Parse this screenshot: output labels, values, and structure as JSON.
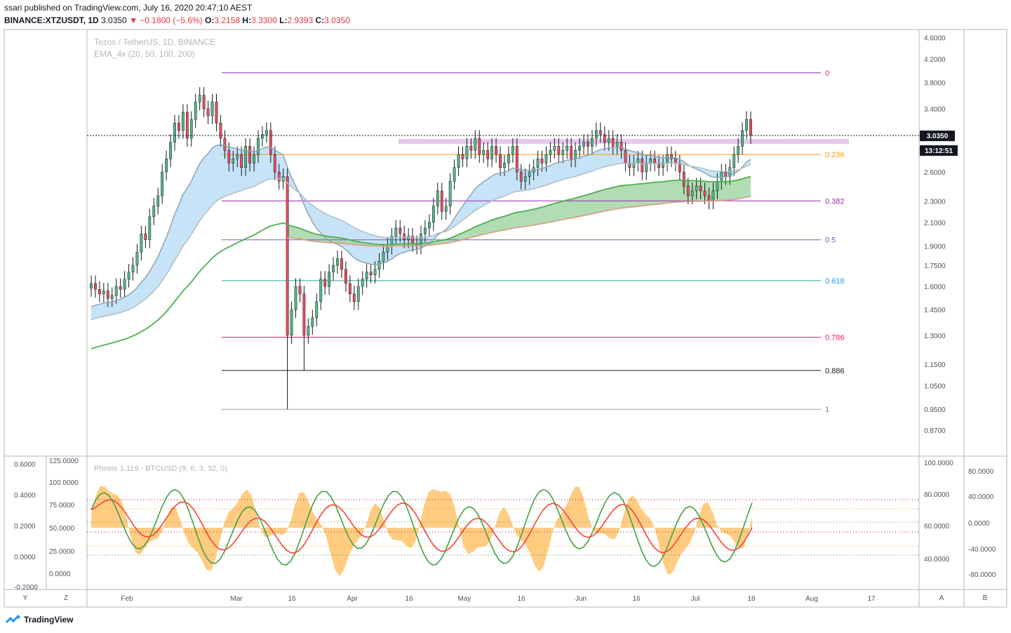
{
  "header": {
    "published": "ssari published on TradingView.com, July 16, 2020 20:47:10 AEST",
    "symbol": "BINANCE:XTZUSDT, 1D",
    "last": "3.0350",
    "change": "▼ −0.1800 (−5.6%)",
    "o_label": "O:",
    "o": "3.2158",
    "h_label": "H:",
    "h": "3.3300",
    "l_label": "L:",
    "l": "2.9393",
    "c_label": "C:",
    "c": "3.0350"
  },
  "main_pane": {
    "title": "Tezos / TetherUS, 1D, BINANCE",
    "indicator": "EMA_4x (20, 50, 100, 200)",
    "price_label": "3.0350",
    "countdown_label": "13:12:51"
  },
  "sub_pane": {
    "title": "Phoeix 1.119 - BTCUSD (9, 6, 3, 32, 0)"
  },
  "corner_buttons": {
    "y": "Y",
    "z": "Z",
    "a": "A",
    "b": "B"
  },
  "footer": {
    "brand": "TradingView"
  },
  "colors": {
    "up": "#53b987",
    "down": "#eb4d5c",
    "ema_band": "#b3d9f5",
    "ema_green": "#4caf50",
    "ema_tan": "#d4a38a",
    "green_fill": "#a5d6a7",
    "supply_zone": "#e1bee7",
    "osc_fill": "#ffb74d",
    "osc_green": "#43a047",
    "osc_red": "#f44336"
  },
  "chart_data": {
    "type": "candlestick",
    "title": "Tezos / TetherUS, 1D, BINANCE",
    "scale": "log",
    "x_ticks": [
      "Feb",
      "Mar",
      "16",
      "Apr",
      "16",
      "May",
      "16",
      "Jun",
      "16",
      "Jul",
      "16",
      "Aug",
      "17"
    ],
    "y_ticks": [
      "4.6000",
      "4.2000",
      "3.8000",
      "3.4000",
      "3.0000",
      "2.6000",
      "2.3000",
      "2.1000",
      "1.9000",
      "1.7500",
      "1.6000",
      "1.4500",
      "1.3000",
      "1.1500",
      "1.0500",
      "0.9500",
      "0.8700"
    ],
    "fib_levels": [
      {
        "label": "0",
        "value": 3.96
      },
      {
        "label": "0.236",
        "value": 2.8
      },
      {
        "label": "0.382",
        "value": 2.3
      },
      {
        "label": "0.5",
        "value": 1.95
      },
      {
        "label": "0.618",
        "value": 1.64
      },
      {
        "label": "0.786",
        "value": 1.29
      },
      {
        "label": "0.886",
        "value": 1.12
      },
      {
        "label": "1",
        "value": 0.95
      }
    ],
    "last_price": 3.035,
    "supply_zone": [
      2.93,
      2.99
    ],
    "closes": [
      1.62,
      1.58,
      1.55,
      1.57,
      1.52,
      1.54,
      1.6,
      1.58,
      1.65,
      1.7,
      1.75,
      1.85,
      2.0,
      1.95,
      2.15,
      2.25,
      2.35,
      2.6,
      2.75,
      2.95,
      3.2,
      3.1,
      3.35,
      3.0,
      3.25,
      3.5,
      3.6,
      3.4,
      3.3,
      3.5,
      3.2,
      3.0,
      2.85,
      2.7,
      2.75,
      2.8,
      2.65,
      2.9,
      2.7,
      2.8,
      3.0,
      3.05,
      3.1,
      2.8,
      2.6,
      2.5,
      2.55,
      1.3,
      1.45,
      1.6,
      1.55,
      1.3,
      1.35,
      1.4,
      1.5,
      1.65,
      1.6,
      1.7,
      1.75,
      1.8,
      1.72,
      1.62,
      1.55,
      1.5,
      1.6,
      1.65,
      1.7,
      1.68,
      1.72,
      1.78,
      1.85,
      1.9,
      1.98,
      2.05,
      2.0,
      1.95,
      1.98,
      1.92,
      1.9,
      2.0,
      2.05,
      2.1,
      2.25,
      2.4,
      2.2,
      2.25,
      2.5,
      2.65,
      2.8,
      2.75,
      2.9,
      2.85,
      3.0,
      2.8,
      2.85,
      2.75,
      2.9,
      2.8,
      2.65,
      2.7,
      2.8,
      2.9,
      2.6,
      2.5,
      2.55,
      2.6,
      2.65,
      2.75,
      2.7,
      2.8,
      2.85,
      2.9,
      2.8,
      2.85,
      2.9,
      2.75,
      2.85,
      2.9,
      2.95,
      2.9,
      3.0,
      3.1,
      3.05,
      2.95,
      3.0,
      2.9,
      2.95,
      2.85,
      2.7,
      2.65,
      2.7,
      2.75,
      2.6,
      2.7,
      2.75,
      2.7,
      2.65,
      2.7,
      2.8,
      2.75,
      2.7,
      2.6,
      2.45,
      2.35,
      2.4,
      2.45,
      2.4,
      2.35,
      2.3,
      2.4,
      2.5,
      2.6,
      2.55,
      2.65,
      2.8,
      2.9,
      3.1,
      3.25,
      3.035
    ]
  }
}
